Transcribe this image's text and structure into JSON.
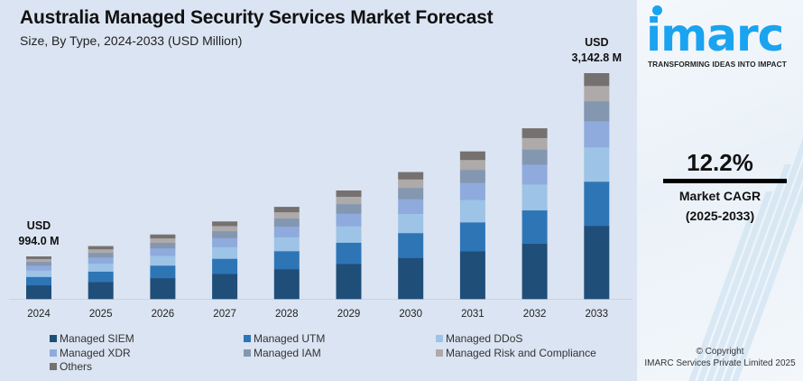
{
  "header": {
    "title": "Australia Managed Security Services Market Forecast",
    "subtitle": "Size, By Type, 2024-2033 (USD Million)"
  },
  "brand": {
    "logo_text": "imarc",
    "tagline": "TRANSFORMING IDEAS INTO IMPACT",
    "color": "#1aa3ef"
  },
  "cagr": {
    "value": "12.2%",
    "label": "Market CAGR",
    "period": "(2025-2033)"
  },
  "copyright": {
    "line1": "© Copyright",
    "line2": "IMARC Services Private Limited 2025"
  },
  "chart_data": {
    "type": "bar",
    "stacked": true,
    "title": "Australia Managed Security Services Market Forecast",
    "subtitle": "Size, By Type, 2024-2033 (USD Million)",
    "xlabel": "",
    "ylabel": "",
    "grid": false,
    "legend_position": "bottom",
    "categories": [
      "2024",
      "2025",
      "2026",
      "2027",
      "2028",
      "2029",
      "2030",
      "2031",
      "2032",
      "2033"
    ],
    "totals": [
      994.0,
      1115,
      1251,
      1404,
      1575,
      1767,
      1983,
      2225,
      2496,
      3142.8
    ],
    "annotations": [
      {
        "category": "2024",
        "line1": "USD",
        "line2": "994.0 M"
      },
      {
        "category": "2033",
        "line1": "USD",
        "line2": "3,142.8 M"
      }
    ],
    "segment_shares": {
      "Managed SIEM": 0.324,
      "Managed UTM": 0.196,
      "Managed DDoS": 0.152,
      "Managed XDR": 0.116,
      "Managed IAM": 0.088,
      "Managed Risk and Compliance": 0.068,
      "Others": 0.056
    },
    "series": [
      {
        "name": "Managed SIEM",
        "color": "#1f4e79",
        "values": [
          322,
          361,
          405,
          455,
          510,
          573,
          642,
          721,
          809,
          1018
        ]
      },
      {
        "name": "Managed UTM",
        "color": "#2e75b6",
        "values": [
          195,
          219,
          245,
          275,
          309,
          346,
          389,
          436,
          489,
          616
        ]
      },
      {
        "name": "Managed DDoS",
        "color": "#9dc3e6",
        "values": [
          151,
          169,
          190,
          213,
          239,
          269,
          301,
          338,
          379,
          478
        ]
      },
      {
        "name": "Managed XDR",
        "color": "#8faadc",
        "values": [
          115,
          129,
          145,
          163,
          183,
          205,
          230,
          258,
          290,
          365
        ]
      },
      {
        "name": "Managed IAM",
        "color": "#8497b0",
        "values": [
          87,
          98,
          110,
          124,
          139,
          155,
          175,
          196,
          220,
          277
        ]
      },
      {
        "name": "Managed Risk and Compliance",
        "color": "#aeaaaa",
        "values": [
          68,
          76,
          85,
          95,
          107,
          120,
          135,
          151,
          170,
          214
        ]
      },
      {
        "name": "Others",
        "color": "#767171",
        "values": [
          56,
          63,
          71,
          79,
          88,
          99,
          111,
          125,
          139,
          175
        ]
      }
    ]
  }
}
